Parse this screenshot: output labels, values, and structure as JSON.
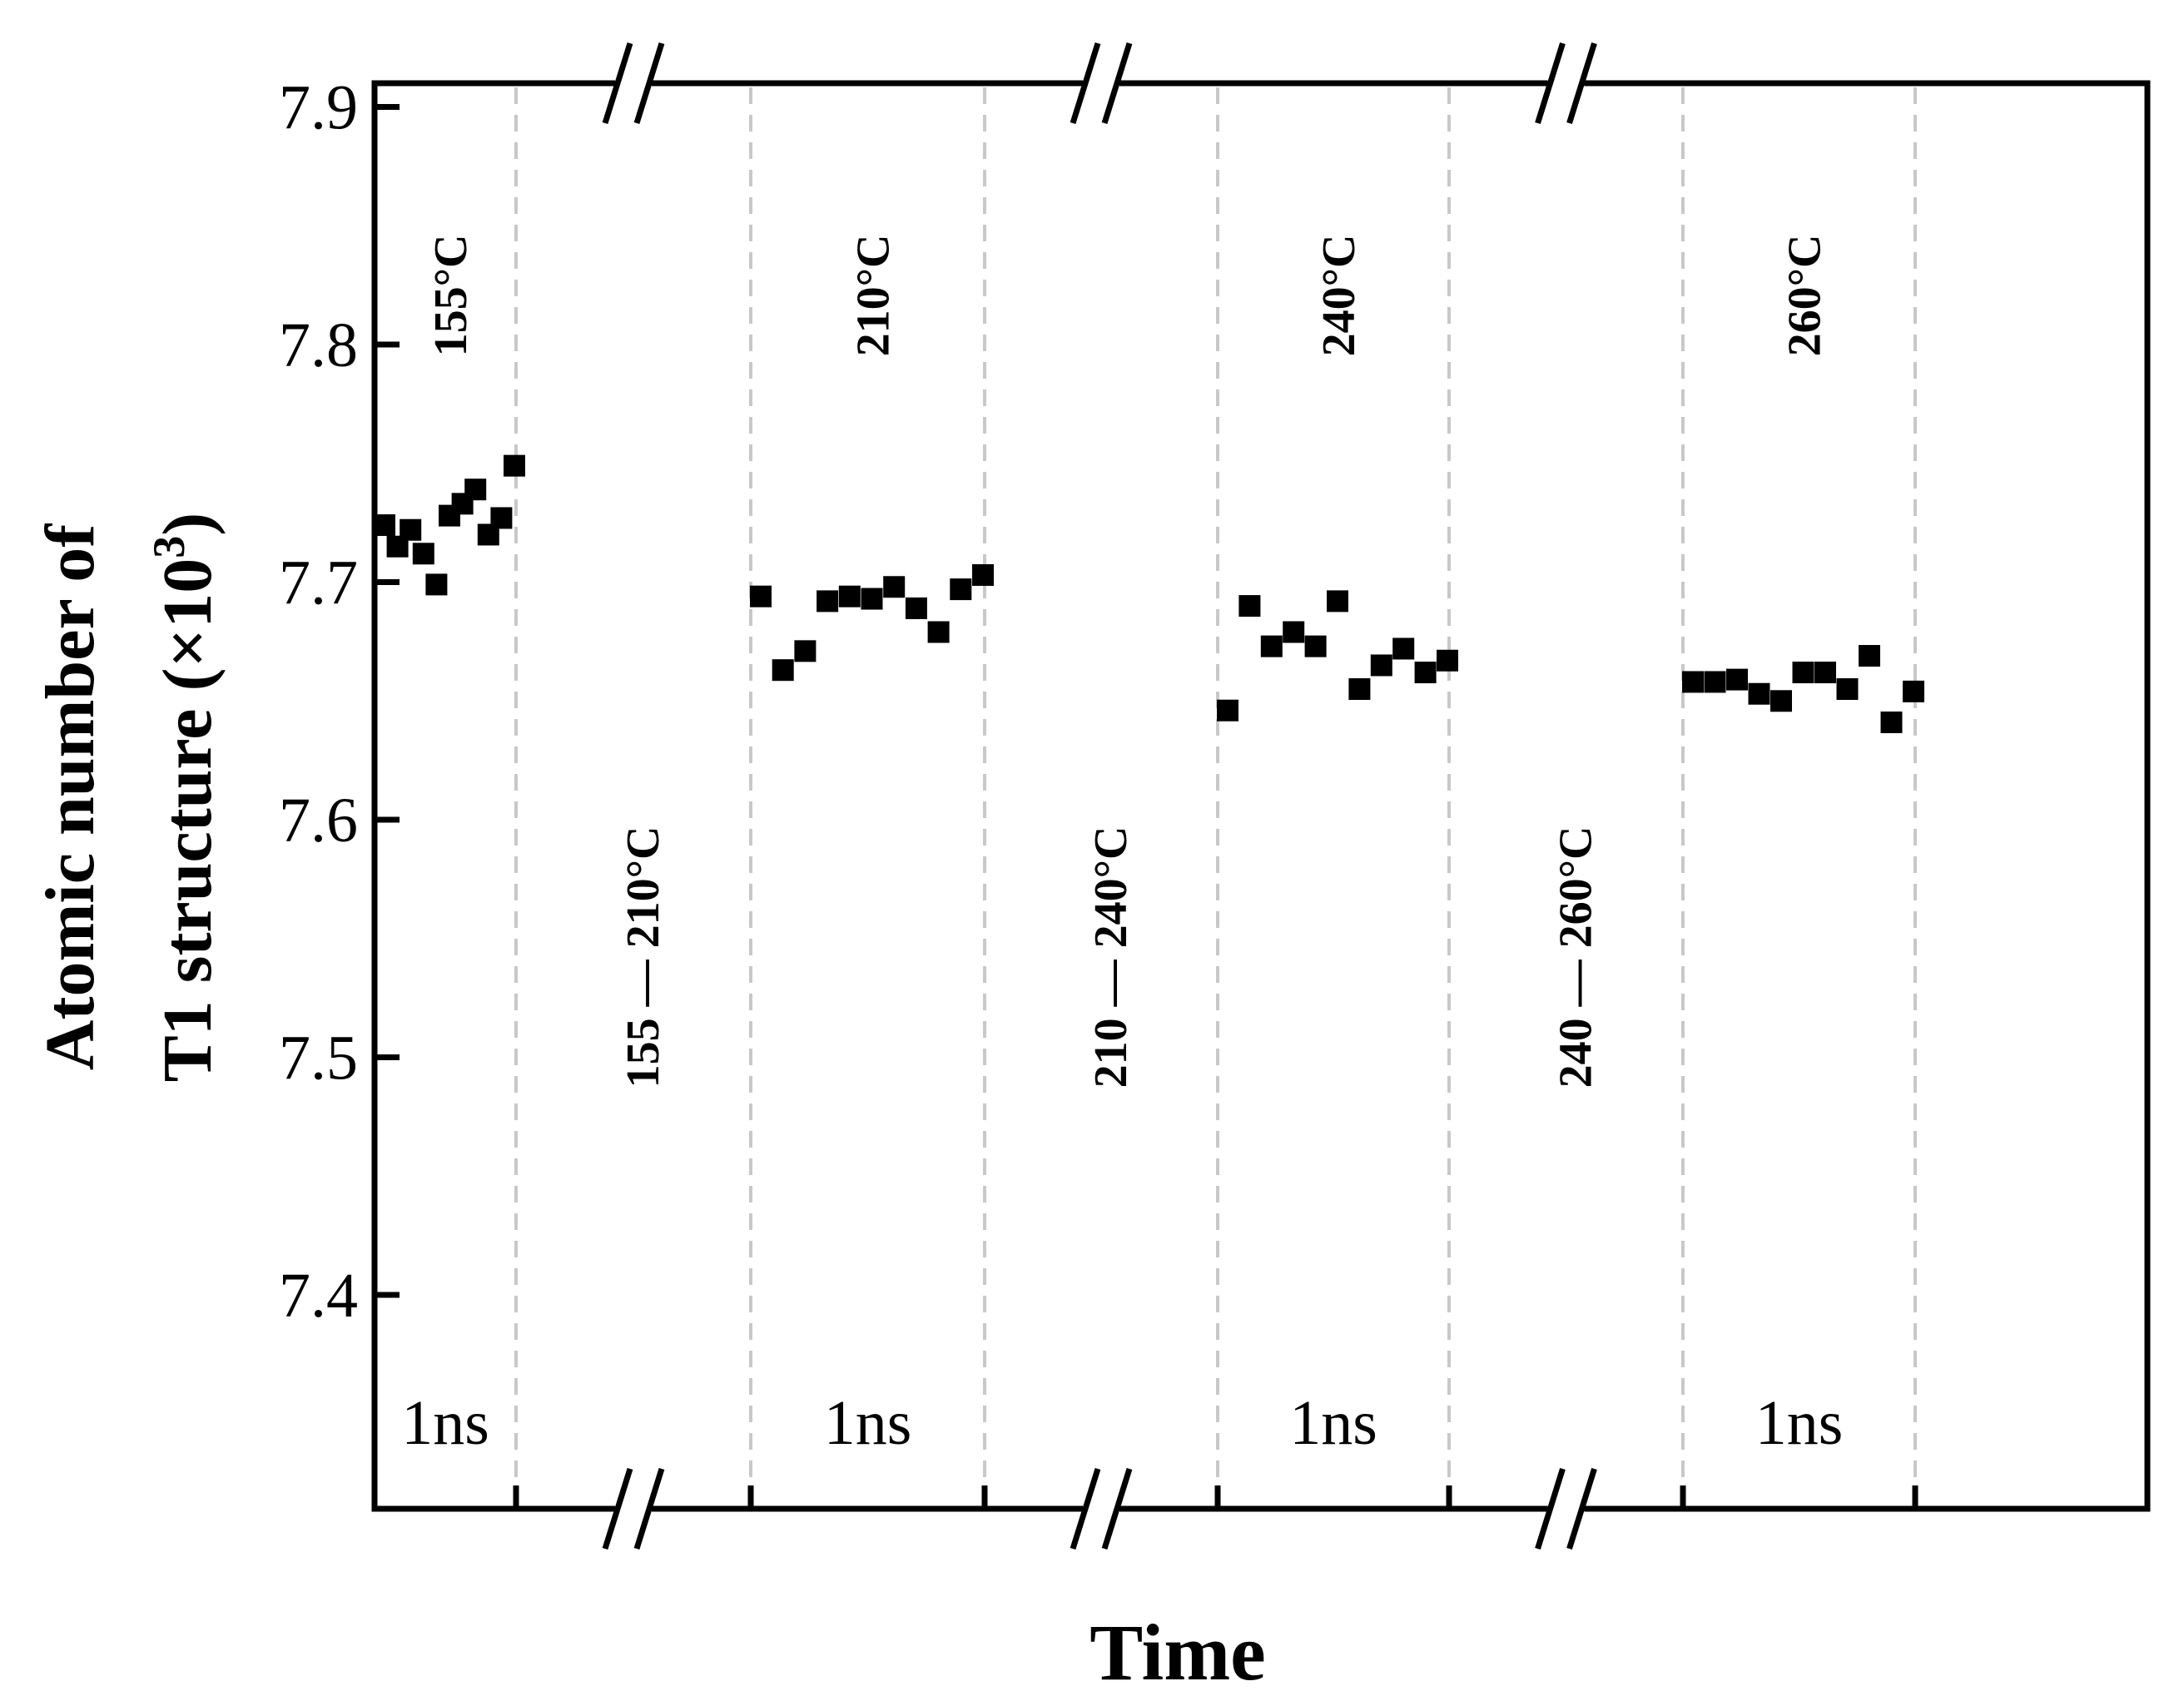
{
  "chart_data": {
    "type": "scatter",
    "title": "",
    "xlabel": "Time",
    "ylabel": [
      "Atomic number of",
      "T1 structure (×10",
      "3",
      ")"
    ],
    "ylim": [
      7.31,
      7.91
    ],
    "yticks": [
      "7.4",
      "7.5",
      "7.6",
      "7.7",
      "7.8",
      "7.9"
    ],
    "grid": "vertical dashed separators",
    "marker": "square",
    "marker_color": "#000000",
    "axis_break_symbol": "//",
    "segments": [
      {
        "label": "155°C",
        "duration": "1ns",
        "type": "hold",
        "values": [
          7.724,
          7.715,
          7.722,
          7.712,
          7.699,
          7.728,
          7.733,
          7.739,
          7.72,
          7.727,
          7.749
        ]
      },
      {
        "label": "155 — 210°C",
        "type": "ramp",
        "values": []
      },
      {
        "label": "210°C",
        "duration": "1ns",
        "type": "hold",
        "values": [
          7.694,
          7.663,
          7.671,
          7.692,
          7.694,
          7.693,
          7.698,
          7.689,
          7.679,
          7.697,
          7.703
        ]
      },
      {
        "label": "210 — 240°C",
        "type": "ramp",
        "values": []
      },
      {
        "label": "240°C",
        "duration": "1ns",
        "type": "hold",
        "values": [
          7.646,
          7.69,
          7.673,
          7.679,
          7.673,
          7.692,
          7.655,
          7.665,
          7.672,
          7.662,
          7.667
        ]
      },
      {
        "label": "240 — 260°C",
        "type": "ramp",
        "values": []
      },
      {
        "label": "260°C",
        "duration": "1ns",
        "type": "hold",
        "values": [
          7.658,
          7.658,
          7.659,
          7.653,
          7.65,
          7.662,
          7.662,
          7.655,
          7.669,
          7.641,
          7.654
        ]
      }
    ]
  }
}
